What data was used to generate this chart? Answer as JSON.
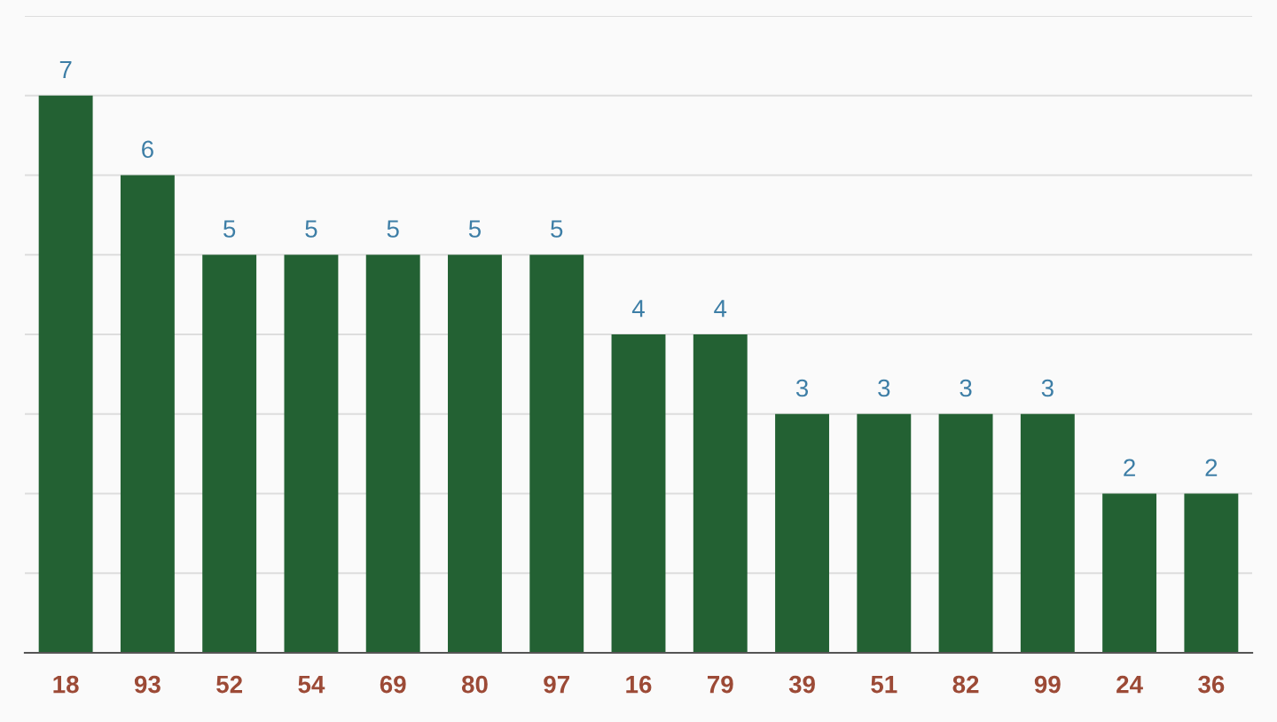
{
  "chart_data": {
    "type": "bar",
    "categories": [
      "18",
      "93",
      "52",
      "54",
      "69",
      "80",
      "97",
      "16",
      "79",
      "39",
      "51",
      "82",
      "99",
      "24",
      "36"
    ],
    "values": [
      7,
      6,
      5,
      5,
      5,
      5,
      5,
      4,
      4,
      3,
      3,
      3,
      3,
      2,
      2
    ],
    "color": "#236133",
    "ylim": [
      0,
      8
    ],
    "yticks": [
      {
        "value": 0,
        "label": null
      },
      {
        "value": 1,
        "label": null
      },
      {
        "value": 2,
        "label": null
      },
      {
        "value": 3,
        "label": null
      },
      {
        "value": 4,
        "label": null
      },
      {
        "value": 5,
        "label": null
      },
      {
        "value": 6,
        "label": null
      },
      {
        "value": 7,
        "label": null
      },
      {
        "value": 8,
        "label": null
      }
    ],
    "grid": "y",
    "data_labels": true,
    "tick_labels": "x",
    "legend": false
  }
}
